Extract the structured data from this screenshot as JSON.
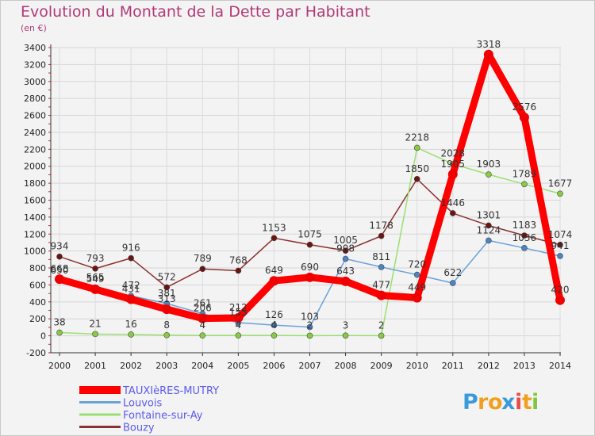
{
  "chart_data": {
    "type": "line",
    "title": "Evolution du Montant de la Dette par Habitant",
    "unit_label": "(en €)",
    "x": [
      "2000",
      "2001",
      "2002",
      "2003",
      "2004",
      "2005",
      "2006",
      "2007",
      "2008",
      "2009",
      "2010",
      "2011",
      "2012",
      "2013",
      "2014"
    ],
    "ylim": [
      -200,
      3400
    ],
    "yticks": [
      "-200",
      "0",
      "200",
      "400",
      "600",
      "800",
      "1000",
      "1200",
      "1400",
      "1600",
      "1800",
      "2000",
      "2200",
      "2400",
      "2600",
      "2800",
      "3000",
      "3200",
      "3400"
    ],
    "grid": true,
    "legend_position": "bottom-left",
    "series": [
      {
        "name": "TAUXIèRES-MUTRY",
        "color": "#ff0000",
        "marker": "#ee0000",
        "values": [
          668,
          549,
          431,
          313,
          206,
          212,
          649,
          690,
          643,
          477,
          449,
          1905,
          3318,
          2576,
          420
        ]
      },
      {
        "name": "Louvois",
        "color": "#6aa2d8",
        "marker": "#4a86c5",
        "values": [
          650,
          565,
          472,
          381,
          261,
          155,
          126,
          103,
          908,
          811,
          720,
          622,
          1124,
          1036,
          941
        ]
      },
      {
        "name": "Fontaine-sur-Ay",
        "color": "#99e070",
        "marker": "#88cc44",
        "values": [
          38,
          21,
          16,
          8,
          4,
          4,
          4,
          2,
          3,
          2,
          2218,
          2028,
          1903,
          1789,
          1677
        ]
      },
      {
        "name": "Bouzy",
        "color": "#8a3030",
        "marker": "#6b1414",
        "values": [
          934,
          793,
          916,
          572,
          789,
          768,
          1153,
          1075,
          1005,
          1178,
          1850,
          1446,
          1301,
          1183,
          1074
        ]
      }
    ]
  },
  "legend": {
    "items": [
      "TAUXIèRES-MUTRY",
      "Louvois",
      "Fontaine-sur-Ay",
      "Bouzy"
    ]
  },
  "logo": {
    "letters": [
      "P",
      "r",
      "o",
      "x",
      "i",
      "t",
      "i"
    ],
    "colors": [
      "#3b9ad9",
      "#f0a020",
      "#f0a020",
      "#3b9ad9",
      "#e94a4a",
      "#f0a020",
      "#7cc843"
    ]
  }
}
